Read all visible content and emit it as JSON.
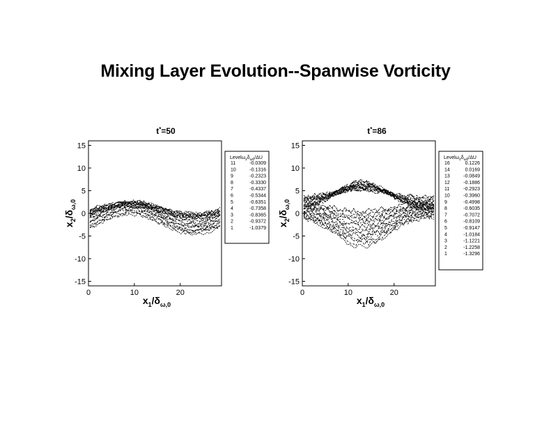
{
  "title": "Mixing Layer Evolution--Spanwise Vorticity",
  "colors": {
    "background": "#ffffff",
    "lines": "#000000"
  },
  "chart_data": [
    {
      "type": "contour",
      "title": "t*=50",
      "title_main": "t",
      "title_sup": "*",
      "title_rest": "=50",
      "xlabel": "x1/δω,0",
      "ylabel": "x2/δω,0",
      "xlim": [
        0,
        29
      ],
      "ylim": [
        -16,
        16
      ],
      "xticks": [
        0,
        10,
        20
      ],
      "yticks": [
        15,
        10,
        5,
        0,
        -5,
        -10,
        -15
      ],
      "grid": false,
      "legend_position": "right",
      "legend_header": "Level ωzδω0/ΔU",
      "legend_header_a": "Level",
      "legend_header_b": "ω",
      "legend_header_c": "δ",
      "legend_header_d": "/ΔU",
      "legend": [
        {
          "level": "11",
          "value": "-0.0309"
        },
        {
          "level": "10",
          "value": "-0.1316"
        },
        {
          "level": "9",
          "value": "-0.2323"
        },
        {
          "level": "8",
          "value": "-0.3330"
        },
        {
          "level": "7",
          "value": "-0.4337"
        },
        {
          "level": "6",
          "value": "-0.5344"
        },
        {
          "level": "5",
          "value": "-0.6351"
        },
        {
          "level": "4",
          "value": "-0.7358"
        },
        {
          "level": "3",
          "value": "-0.8365"
        },
        {
          "level": "2",
          "value": "-0.9372"
        },
        {
          "level": "1",
          "value": "-1.0379"
        }
      ]
    },
    {
      "type": "contour",
      "title": "t*=86",
      "title_main": "t",
      "title_sup": "*",
      "title_rest": "=86",
      "xlabel": "x1/δω,0",
      "ylabel": "x2/δω,0",
      "xlim": [
        0,
        29
      ],
      "ylim": [
        -16,
        16
      ],
      "xticks": [
        0,
        10,
        20
      ],
      "yticks": [
        15,
        10,
        5,
        0,
        -5,
        -10,
        -15
      ],
      "grid": false,
      "legend_position": "right",
      "legend_header": "Level ωzδω0/ΔU",
      "legend_header_a": "Level",
      "legend_header_b": "ω",
      "legend_header_c": "δ",
      "legend_header_d": "/ΔU",
      "legend": [
        {
          "level": "16",
          "value": "0.1226"
        },
        {
          "level": "14",
          "value": "0.0169"
        },
        {
          "level": "13",
          "value": "-0.0849"
        },
        {
          "level": "12",
          "value": "-0.1886"
        },
        {
          "level": "11",
          "value": "-0.2923"
        },
        {
          "level": "10",
          "value": "-0.3960"
        },
        {
          "level": "9",
          "value": "-0.4998"
        },
        {
          "level": "8",
          "value": "-0.6035"
        },
        {
          "level": "7",
          "value": "-0.7072"
        },
        {
          "level": "6",
          "value": "-0.8109"
        },
        {
          "level": "5",
          "value": "-0.9147"
        },
        {
          "level": "4",
          "value": "-1.0184"
        },
        {
          "level": "3",
          "value": "-1.1221"
        },
        {
          "level": "2",
          "value": "-1.2258"
        },
        {
          "level": "1",
          "value": "-1.3296"
        }
      ]
    }
  ]
}
